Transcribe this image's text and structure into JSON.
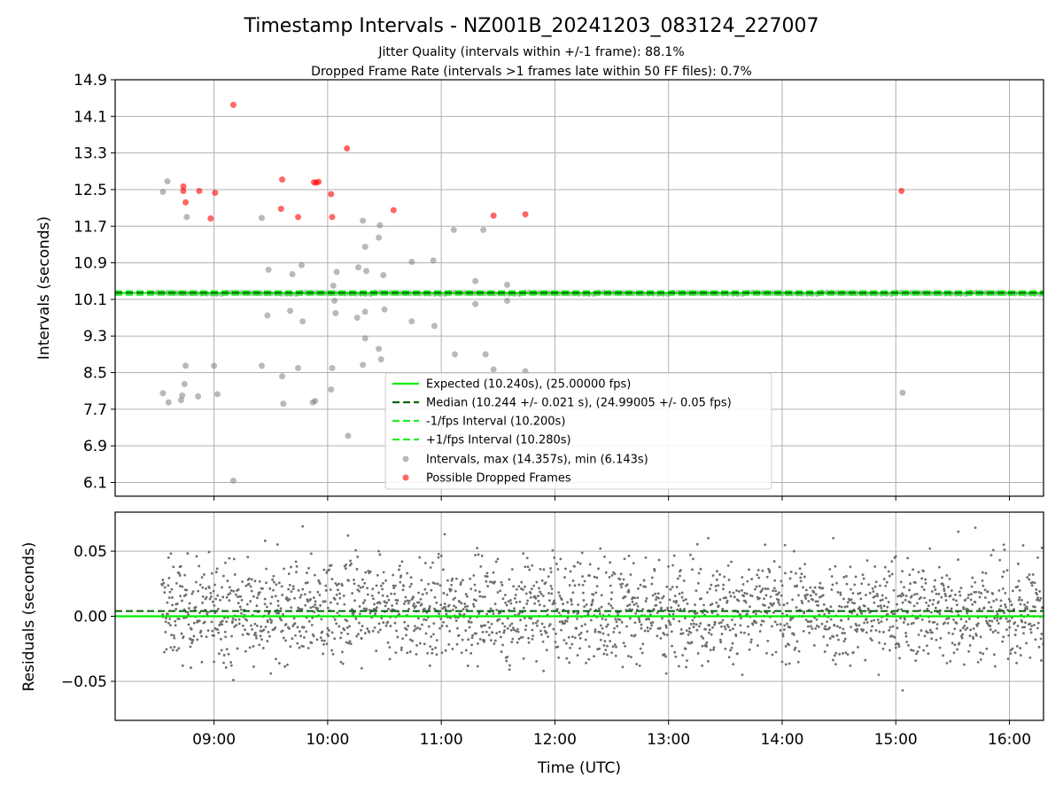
{
  "figure": {
    "title": "Timestamp Intervals - NZ001B_20241203_083124_227007",
    "subtitle_1": "Jitter Quality (intervals within +/-1 frame): 88.1%",
    "subtitle_2": "Dropped Frame Rate (intervals >1 frames late within 50 FF files): 0.7%",
    "xlabel": "Time (UTC)"
  },
  "colors": {
    "expected": "#00ee00",
    "median": "#006400",
    "bounds": "#22ee22",
    "intervals": "#808080",
    "dropped": "#ff0000",
    "residuals": "#6e6e6e",
    "grid": "#b0b0b0"
  },
  "legend": {
    "placement": "lower-center",
    "expected": "Expected (10.240s), (25.00000 fps)",
    "median": "Median (10.244 +/- 0.021 s), (24.99005 +/- 0.05 fps)",
    "minus": "-1/fps Interval (10.200s)",
    "plus": "+1/fps Interval (10.280s)",
    "intervals": "Intervals, max (14.357s), min (6.143s)",
    "dropped": "Possible Dropped Frames"
  },
  "chart_data": [
    {
      "type": "scatter",
      "ylabel": "Intervals (seconds)",
      "x_unit": "hours UTC",
      "xlim": [
        8.13,
        16.3
      ],
      "ylim": [
        5.8,
        14.9
      ],
      "y_ticks": [
        "6.1",
        "6.9",
        "7.7",
        "8.5",
        "9.3",
        "10.1",
        "10.9",
        "11.7",
        "12.5",
        "13.3",
        "14.1",
        "14.9"
      ],
      "x_ticks": [
        {
          "value": 9,
          "label": "09:00"
        },
        {
          "value": 10,
          "label": "10:00"
        },
        {
          "value": 11,
          "label": "11:00"
        },
        {
          "value": 12,
          "label": "12:00"
        },
        {
          "value": 13,
          "label": "13:00"
        },
        {
          "value": 14,
          "label": "14:00"
        },
        {
          "value": 15,
          "label": "15:00"
        },
        {
          "value": 16,
          "label": "16:00"
        }
      ],
      "grid": true,
      "expected": 10.24,
      "median": 10.244,
      "minus_interval": 10.2,
      "plus_interval": 10.28,
      "baseline_start": 8.5,
      "baseline_end": 16.3,
      "intervals_outliers": [
        [
          8.55,
          12.45
        ],
        [
          8.59,
          12.68
        ],
        [
          8.55,
          8.05
        ],
        [
          8.6,
          7.85
        ],
        [
          8.71,
          7.9
        ],
        [
          8.72,
          8.0
        ],
        [
          8.74,
          8.25
        ],
        [
          8.75,
          8.65
        ],
        [
          8.76,
          11.9
        ],
        [
          8.86,
          7.98
        ],
        [
          9.0,
          8.65
        ],
        [
          9.03,
          8.03
        ],
        [
          9.17,
          6.14
        ],
        [
          9.42,
          11.88
        ],
        [
          9.42,
          8.65
        ],
        [
          9.47,
          9.75
        ],
        [
          9.48,
          10.75
        ],
        [
          9.6,
          8.42
        ],
        [
          9.61,
          7.82
        ],
        [
          9.67,
          9.85
        ],
        [
          9.69,
          10.65
        ],
        [
          9.74,
          8.6
        ],
        [
          9.77,
          10.85
        ],
        [
          9.78,
          9.62
        ],
        [
          9.87,
          7.85
        ],
        [
          9.89,
          7.88
        ],
        [
          10.03,
          8.13
        ],
        [
          10.04,
          8.6
        ],
        [
          10.05,
          10.4
        ],
        [
          10.06,
          10.07
        ],
        [
          10.07,
          9.8
        ],
        [
          10.08,
          10.7
        ],
        [
          10.18,
          7.12
        ],
        [
          10.26,
          9.7
        ],
        [
          10.27,
          10.8
        ],
        [
          10.31,
          11.82
        ],
        [
          10.31,
          8.67
        ],
        [
          10.33,
          11.25
        ],
        [
          10.33,
          9.83
        ],
        [
          10.33,
          9.25
        ],
        [
          10.34,
          10.72
        ],
        [
          10.45,
          11.45
        ],
        [
          10.45,
          9.02
        ],
        [
          10.46,
          11.72
        ],
        [
          10.47,
          8.79
        ],
        [
          10.49,
          10.63
        ],
        [
          10.5,
          9.88
        ],
        [
          10.74,
          10.92
        ],
        [
          10.74,
          9.62
        ],
        [
          10.93,
          10.95
        ],
        [
          10.94,
          9.52
        ],
        [
          11.11,
          11.62
        ],
        [
          11.12,
          8.9
        ],
        [
          11.3,
          10.5
        ],
        [
          11.3,
          10.0
        ],
        [
          11.37,
          11.62
        ],
        [
          11.39,
          8.9
        ],
        [
          11.46,
          8.57
        ],
        [
          11.58,
          10.42
        ],
        [
          11.58,
          10.07
        ],
        [
          11.74,
          8.53
        ],
        [
          15.06,
          8.06
        ]
      ],
      "dropped_frames": [
        [
          8.73,
          12.57
        ],
        [
          8.73,
          12.47
        ],
        [
          8.75,
          12.22
        ],
        [
          8.87,
          12.47
        ],
        [
          8.97,
          11.87
        ],
        [
          9.01,
          12.43
        ],
        [
          9.17,
          14.35
        ],
        [
          9.59,
          12.08
        ],
        [
          9.6,
          12.72
        ],
        [
          9.74,
          11.9
        ],
        [
          9.88,
          12.66
        ],
        [
          9.9,
          12.65
        ],
        [
          9.92,
          12.67
        ],
        [
          10.03,
          12.4
        ],
        [
          10.04,
          11.9
        ],
        [
          10.17,
          13.4
        ],
        [
          10.58,
          12.05
        ],
        [
          11.46,
          11.93
        ],
        [
          11.74,
          11.96
        ],
        [
          15.05,
          12.47
        ]
      ]
    },
    {
      "type": "scatter",
      "ylabel": "Residuals (seconds)",
      "xlim": [
        8.13,
        16.3
      ],
      "ylim": [
        -0.08,
        0.08
      ],
      "y_ticks": [
        {
          "value": -0.05,
          "label": "−0.05"
        },
        {
          "value": 0.0,
          "label": "0.00"
        },
        {
          "value": 0.05,
          "label": "0.05"
        }
      ],
      "grid": true,
      "expected_line": 0.0,
      "median_line": 0.004,
      "residual_points": [
        [
          8.6,
          0.045
        ],
        [
          8.62,
          -0.024
        ],
        [
          8.7,
          0.038
        ],
        [
          8.8,
          -0.018
        ],
        [
          8.9,
          0.022
        ],
        [
          9.0,
          -0.035
        ],
        [
          9.1,
          0.041
        ],
        [
          9.17,
          -0.049
        ],
        [
          9.3,
          0.028
        ],
        [
          9.45,
          0.058
        ],
        [
          9.5,
          -0.044
        ],
        [
          9.65,
          0.012
        ],
        [
          9.78,
          0.069
        ],
        [
          9.85,
          -0.02
        ],
        [
          10.0,
          0.035
        ],
        [
          10.18,
          0.062
        ],
        [
          10.3,
          -0.04
        ],
        [
          10.45,
          0.05
        ],
        [
          10.6,
          -0.028
        ],
        [
          10.7,
          0.033
        ],
        [
          10.9,
          -0.038
        ],
        [
          11.03,
          0.063
        ],
        [
          11.15,
          -0.015
        ],
        [
          11.3,
          0.047
        ],
        [
          11.45,
          0.026
        ],
        [
          11.6,
          -0.041
        ],
        [
          11.8,
          0.039
        ],
        [
          11.9,
          -0.042
        ],
        [
          12.05,
          0.044
        ],
        [
          12.2,
          -0.03
        ],
        [
          12.4,
          0.052
        ],
        [
          12.5,
          -0.028
        ],
        [
          12.65,
          0.02
        ],
        [
          12.8,
          0.045
        ],
        [
          12.98,
          -0.044
        ],
        [
          13.1,
          0.031
        ],
        [
          13.35,
          0.06
        ],
        [
          13.5,
          -0.025
        ],
        [
          13.65,
          -0.045
        ],
        [
          13.85,
          0.055
        ],
        [
          14.0,
          -0.035
        ],
        [
          14.2,
          0.04
        ],
        [
          14.45,
          0.06
        ],
        [
          14.6,
          -0.038
        ],
        [
          14.7,
          0.025
        ],
        [
          14.85,
          -0.045
        ],
        [
          15.0,
          0.046
        ],
        [
          15.06,
          -0.057
        ],
        [
          15.3,
          0.052
        ],
        [
          15.45,
          -0.036
        ],
        [
          15.55,
          0.065
        ],
        [
          15.7,
          0.068
        ],
        [
          15.8,
          -0.025
        ],
        [
          15.95,
          0.055
        ],
        [
          16.1,
          -0.03
        ],
        [
          16.25,
          0.045
        ],
        [
          16.28,
          -0.034
        ]
      ]
    }
  ]
}
